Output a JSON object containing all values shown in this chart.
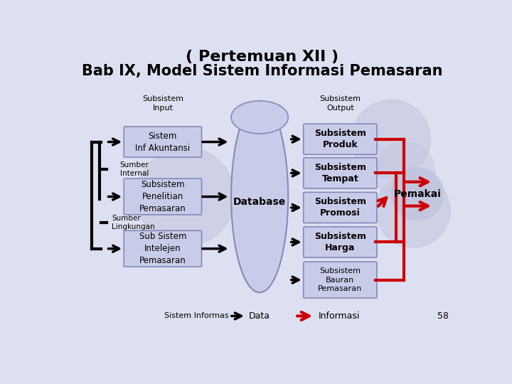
{
  "title_line1": "( Pertemuan XII )",
  "title_line2": "Bab IX, Model Sistem Informasi Pemasaran",
  "bg_color": "#dde0f0",
  "box_fill": "#c8cce8",
  "box_edge": "#8888bb",
  "input_boxes": [
    "Sistem\nInf Akuntansi",
    "Subsistem\nPenelitian\nPemasaran",
    "Sub Sistem\nIntelejen\nPemasaran"
  ],
  "output_boxes": [
    "Subsistem\nProduk",
    "Subsistem\nTempat",
    "Subsistem\nPromosi",
    "Subsistem\nHarga",
    "Subsistem\nBauran\nPemasaran"
  ],
  "label_input": "Subsistem\nInput",
  "label_output": "Subsistem\nOutput",
  "label_sumber_internal": "Sumber\nInternal",
  "label_sumber_lingkungan": "Sumber\nLingkungan",
  "label_database": "Database",
  "label_pemakai": "Pemakai",
  "label_data": "Data",
  "label_informasi": "Informasi",
  "label_sistem_informasi": "Sistem Informas",
  "label_page": "58",
  "arrow_black": "#000000",
  "arrow_red": "#cc0000",
  "circ_color": "#c0c4de",
  "db_fill": "#c8cce8",
  "db_edge": "#8888bb"
}
